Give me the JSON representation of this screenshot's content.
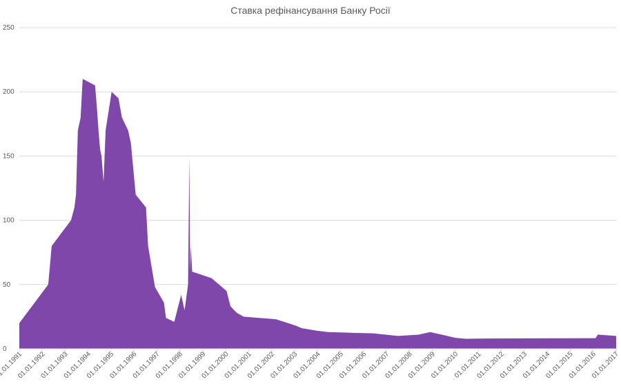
{
  "chart_data": {
    "type": "area",
    "title": "Ставка рефінансування Банку Росії",
    "color": "#7f47aa",
    "grid": true,
    "x": [
      1991.0,
      1992.26,
      1992.41,
      1993.25,
      1993.4,
      1993.47,
      1993.55,
      1993.67,
      1993.76,
      1994.3,
      1994.37,
      1994.45,
      1994.52,
      1994.58,
      1994.67,
      1994.76,
      1995.02,
      1995.32,
      1995.47,
      1995.74,
      1995.86,
      1996.07,
      1996.52,
      1996.61,
      1996.91,
      1997.3,
      1997.39,
      1997.75,
      1998.05,
      1998.2,
      1998.35,
      1998.41,
      1998.44,
      1998.47,
      1998.53,
      1999.37,
      2000.03,
      2000.2,
      2000.47,
      2000.77,
      2002.18,
      2003.05,
      2003.3,
      2003.98,
      2004.45,
      2006.42,
      2007.5,
      2008.4,
      2008.9,
      2009.4,
      2010.0,
      2010.45,
      2011.2,
      2016.1,
      2016.2,
      2017.0
    ],
    "values": [
      20,
      50,
      80,
      100,
      110,
      120,
      170,
      180,
      210,
      205,
      190,
      170,
      155,
      150,
      130,
      170,
      200,
      195,
      180,
      170,
      160,
      120,
      110,
      80,
      48,
      36,
      24,
      21,
      42,
      30,
      50,
      150,
      60,
      80,
      60,
      55,
      45,
      33,
      28,
      25,
      23,
      18,
      16,
      14,
      13,
      12,
      10,
      11,
      13,
      11,
      8.5,
      7.75,
      8,
      8.25,
      11,
      10
    ],
    "xlim": [
      1991,
      2017
    ],
    "xticks": [
      {
        "value": 1991,
        "label": "01.01.1991"
      },
      {
        "value": 1992,
        "label": "01.01.1992"
      },
      {
        "value": 1993,
        "label": "01.01.1993"
      },
      {
        "value": 1994,
        "label": "01.01.1994"
      },
      {
        "value": 1995,
        "label": "01.01.1995"
      },
      {
        "value": 1996,
        "label": "01.01.1996"
      },
      {
        "value": 1997,
        "label": "01.01.1997"
      },
      {
        "value": 1998,
        "label": "01.01.1998"
      },
      {
        "value": 1999,
        "label": "01.01.1999"
      },
      {
        "value": 2000,
        "label": "01.01.2000"
      },
      {
        "value": 2001,
        "label": "01.01.2001"
      },
      {
        "value": 2002,
        "label": "01.01.2002"
      },
      {
        "value": 2003,
        "label": "01.01.2003"
      },
      {
        "value": 2004,
        "label": "01.01.2004"
      },
      {
        "value": 2005,
        "label": "01.01.2005"
      },
      {
        "value": 2006,
        "label": "01.01.2006"
      },
      {
        "value": 2007,
        "label": "01.01.2007"
      },
      {
        "value": 2008,
        "label": "01.01.2008"
      },
      {
        "value": 2009,
        "label": "01.01.2009"
      },
      {
        "value": 2010,
        "label": "01.01.2010"
      },
      {
        "value": 2011,
        "label": "01.01.2011"
      },
      {
        "value": 2012,
        "label": "01.01.2012"
      },
      {
        "value": 2013,
        "label": "01.01.2013"
      },
      {
        "value": 2014,
        "label": "01.01.2014"
      },
      {
        "value": 2015,
        "label": "01.01.2015"
      },
      {
        "value": 2016,
        "label": "01.01.2016"
      },
      {
        "value": 2017,
        "label": "01.01.2017"
      }
    ],
    "ylim": [
      0,
      250
    ],
    "yticks": [
      0,
      50,
      100,
      150,
      200,
      250
    ]
  }
}
